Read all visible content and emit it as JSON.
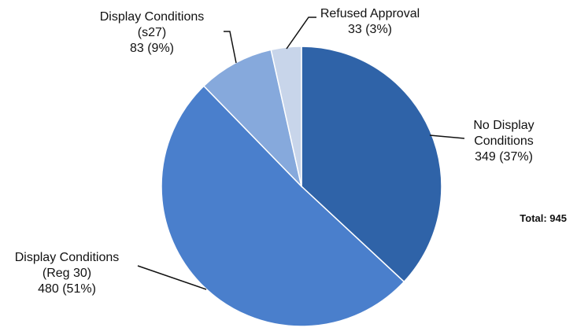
{
  "chart_data": {
    "type": "pie",
    "categories": [
      "No Display Conditions",
      "Display Conditions (Reg 30)",
      "Display Conditions (s27)",
      "Refused Approval"
    ],
    "values": [
      349,
      480,
      83,
      33
    ],
    "value_labels": [
      "349 (37%)",
      "480 (51%)",
      "83 (9%)",
      "33 (3%)"
    ],
    "colors": [
      "#2f63a8",
      "#4a7fcc",
      "#86a9dc",
      "#c8d5ea"
    ],
    "annotation": "Total: 945"
  }
}
